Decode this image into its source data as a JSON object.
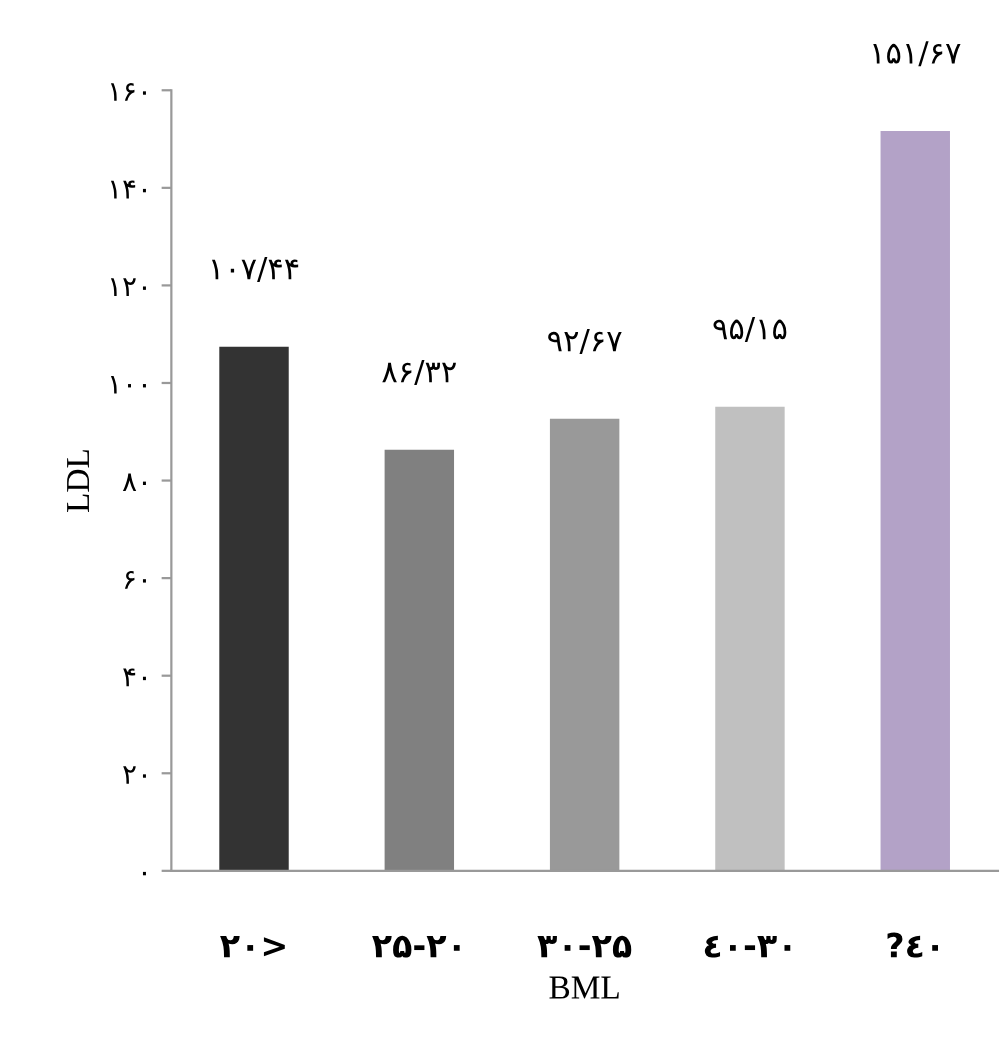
{
  "chart_data": {
    "type": "bar",
    "xlabel": "BML",
    "ylabel": "LDL",
    "categories": [
      "۲۰>",
      "۲۵-۲۰",
      "۳۰-۲۵",
      "٤۰-۳۰",
      "?٤۰"
    ],
    "values": [
      107.44,
      86.32,
      92.67,
      95.15,
      151.67
    ],
    "colors": [
      "#333333",
      "#808080",
      "#999999",
      "#c0c0c0",
      "#b3a2c7"
    ],
    "value_labels": [
      "۱۰۷/۴۴",
      "۸۶/۳۲",
      "۹۲/۶۷",
      "۹۵/۱۵",
      "۱۵۱/۶۷"
    ],
    "ylim": [
      0,
      160
    ],
    "yticks": [
      {
        "value": 0,
        "label": "۰"
      },
      {
        "value": 20,
        "label": "۲۰"
      },
      {
        "value": 40,
        "label": "۴۰"
      },
      {
        "value": 60,
        "label": "۶۰"
      },
      {
        "value": 80,
        "label": "۸۰"
      },
      {
        "value": 100,
        "label": "۱۰۰"
      },
      {
        "value": 120,
        "label": "۱۲۰"
      },
      {
        "value": 140,
        "label": "۱۴۰"
      },
      {
        "value": 160,
        "label": "۱۶۰"
      }
    ],
    "grid": false,
    "legend": false
  }
}
